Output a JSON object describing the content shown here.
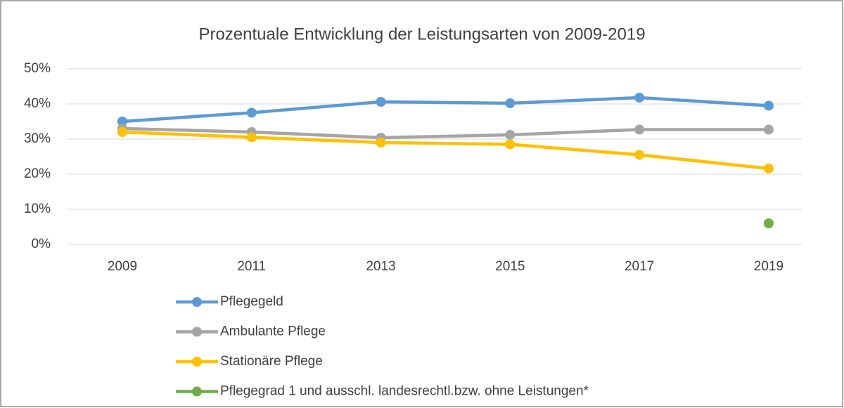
{
  "chart_data": {
    "type": "line",
    "title": "Prozentuale Entwicklung der Leistungsarten von 2009-2019",
    "categories": [
      "2009",
      "2011",
      "2013",
      "2015",
      "2017",
      "2019"
    ],
    "series": [
      {
        "name": "Pflegegeld",
        "color": "#5b9bd5",
        "values": [
          35,
          37.5,
          40.6,
          40.2,
          41.8,
          39.5
        ]
      },
      {
        "name": "Ambulante Pflege",
        "color": "#a5a5a5",
        "values": [
          33,
          32,
          30.4,
          31.2,
          32.7,
          32.7
        ]
      },
      {
        "name": "Stationäre Pflege",
        "color": "#ffc000",
        "values": [
          32,
          30.5,
          29,
          28.5,
          25.5,
          21.6
        ]
      },
      {
        "name": "Pflegegrad 1 und ausschl. landesrechtl.bzw. ohne Leistungen*",
        "color": "#70ad47",
        "values": [
          null,
          null,
          null,
          null,
          null,
          6
        ]
      }
    ],
    "ylim": [
      0,
      50
    ],
    "yticks": [
      {
        "value": 0,
        "label": "0%"
      },
      {
        "value": 10,
        "label": "10%"
      },
      {
        "value": 20,
        "label": "20%"
      },
      {
        "value": 30,
        "label": "30%"
      },
      {
        "value": 40,
        "label": "40%"
      },
      {
        "value": 50,
        "label": "50%"
      }
    ],
    "grid": true,
    "legend": "bottom"
  }
}
